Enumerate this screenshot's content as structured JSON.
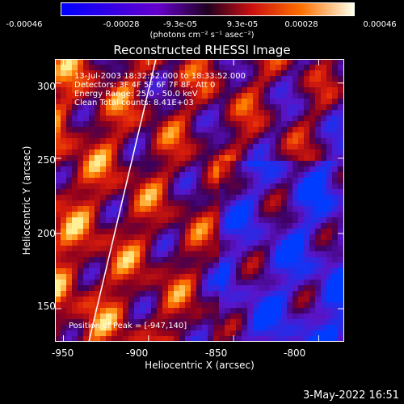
{
  "colorbar": {
    "ticks": [
      "-0.00046",
      "-0.00028",
      "-9.3e-05",
      "9.3e-05",
      "0.00028",
      "0.00046"
    ],
    "units": "(photons cm⁻² s⁻¹ asec⁻²)"
  },
  "annotations": {
    "line1": "13-Jul-2003 18:32:52.000 to 18:33:52.000",
    "line2": "Detectors: 3F 4F 5F 6F 7F 8F, Att 0",
    "line3": "Energy Range: 25.0 - 50.0 keV",
    "line4": "Clean    Total counts: 8.41E+03",
    "peak": "Position of Peak = [-947,140]"
  },
  "footer": {
    "date": "3-May-2022 16:51"
  },
  "chart_data": {
    "type": "heatmap",
    "title": "Reconstructed RHESSI Image",
    "xlabel": "Heliocentric X (arcsec)",
    "ylabel": "Heliocentric Y (arcsec)",
    "xlim": [
      -955,
      -785
    ],
    "ylim": [
      128,
      316
    ],
    "xticks": [
      -950,
      -900,
      -850,
      -800
    ],
    "yticks": [
      150,
      200,
      250,
      300
    ],
    "colorbar_range": [
      -0.00046,
      0.00046
    ],
    "peak_position": [
      -947,
      140
    ],
    "limb_line": true
  }
}
